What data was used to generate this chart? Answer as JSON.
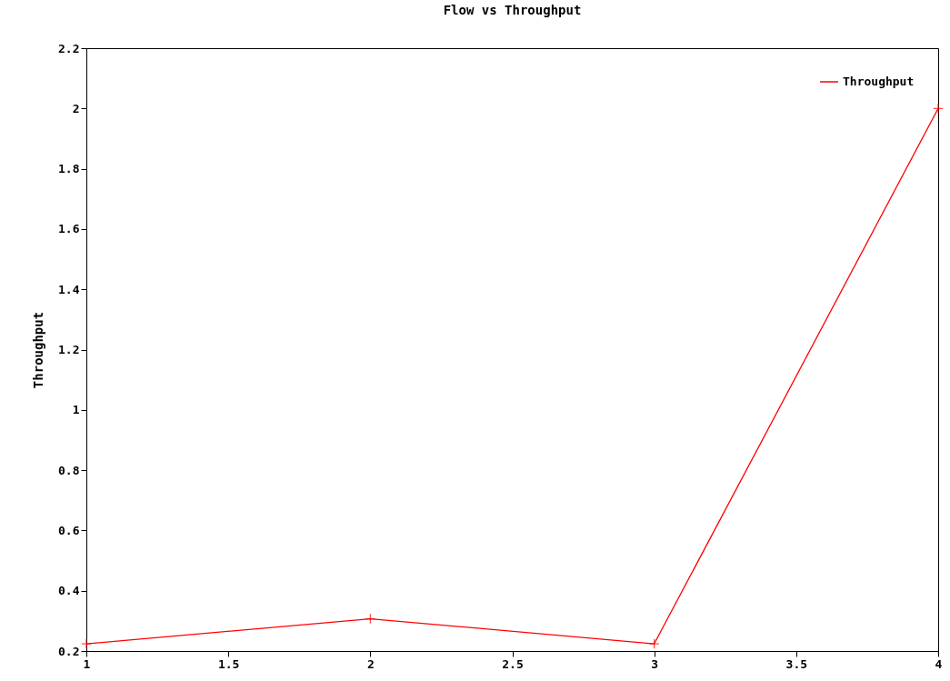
{
  "chart_data": {
    "type": "line",
    "title": "Flow vs Throughput",
    "ylabel": "Throughput",
    "x": [
      1,
      2,
      3,
      4
    ],
    "series": [
      {
        "name": "Throughput",
        "color": "#ff0000",
        "values": [
          0.224,
          0.307,
          0.224,
          2.0
        ]
      }
    ],
    "xlim": [
      1,
      4
    ],
    "xticks": [
      1,
      1.5,
      2,
      2.5,
      3,
      3.5,
      4
    ],
    "ylim": [
      0.2,
      2.2
    ],
    "yticks": [
      0.2,
      0.4,
      0.6,
      0.8,
      1,
      1.2,
      1.4,
      1.6,
      1.8,
      2,
      2.2
    ],
    "grid": false,
    "legend": "top right",
    "marker": "cross",
    "line_style": "solid"
  }
}
